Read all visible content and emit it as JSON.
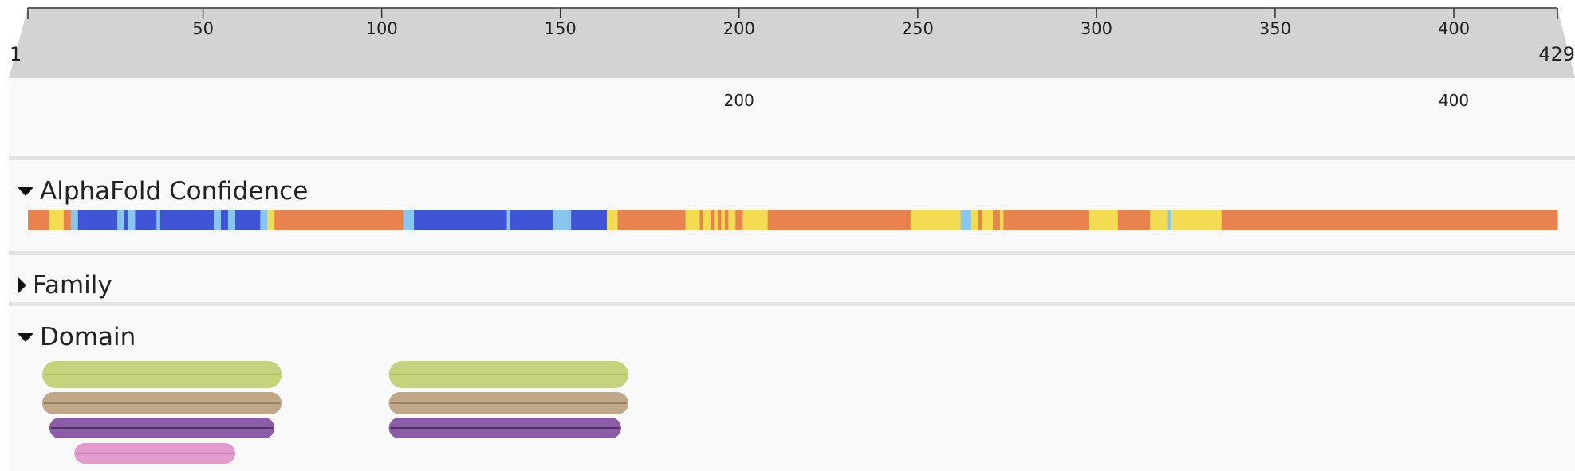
{
  "sequence": {
    "start": 1,
    "end": 429,
    "start_label": "1",
    "end_label": "429"
  },
  "ruler": {
    "ticks": [
      50,
      100,
      150,
      200,
      250,
      300,
      350,
      400
    ],
    "labels": [
      "50",
      "100",
      "150",
      "200",
      "250",
      "300",
      "350",
      "400"
    ]
  },
  "sub_axis": {
    "ticks": [
      200,
      400
    ],
    "labels": [
      "200",
      "400"
    ]
  },
  "tracks": {
    "confidence": {
      "label": "AlphaFold Confidence",
      "expanded": true
    },
    "family": {
      "label": "Family",
      "expanded": false
    },
    "domain": {
      "label": "Domain",
      "expanded": true
    }
  },
  "confidence_colors": {
    "very_high": "#3f54d6",
    "confident": "#87c6ee",
    "low": "#f4dc52",
    "very_low": "#e88350"
  },
  "confidence_segments": [
    {
      "start": 1,
      "end": 7,
      "level": "very_low"
    },
    {
      "start": 7,
      "end": 11,
      "level": "low"
    },
    {
      "start": 11,
      "end": 13,
      "level": "very_low"
    },
    {
      "start": 13,
      "end": 15,
      "level": "confident"
    },
    {
      "start": 15,
      "end": 26,
      "level": "very_high"
    },
    {
      "start": 26,
      "end": 28,
      "level": "confident"
    },
    {
      "start": 28,
      "end": 29,
      "level": "very_high"
    },
    {
      "start": 29,
      "end": 31,
      "level": "confident"
    },
    {
      "start": 31,
      "end": 37,
      "level": "very_high"
    },
    {
      "start": 37,
      "end": 38,
      "level": "confident"
    },
    {
      "start": 38,
      "end": 53,
      "level": "very_high"
    },
    {
      "start": 53,
      "end": 55,
      "level": "confident"
    },
    {
      "start": 55,
      "end": 57,
      "level": "very_high"
    },
    {
      "start": 57,
      "end": 59,
      "level": "confident"
    },
    {
      "start": 59,
      "end": 66,
      "level": "very_high"
    },
    {
      "start": 66,
      "end": 68,
      "level": "confident"
    },
    {
      "start": 68,
      "end": 70,
      "level": "low"
    },
    {
      "start": 70,
      "end": 106,
      "level": "very_low"
    },
    {
      "start": 106,
      "end": 109,
      "level": "confident"
    },
    {
      "start": 109,
      "end": 135,
      "level": "very_high"
    },
    {
      "start": 135,
      "end": 136,
      "level": "confident"
    },
    {
      "start": 136,
      "end": 148,
      "level": "very_high"
    },
    {
      "start": 148,
      "end": 153,
      "level": "confident"
    },
    {
      "start": 153,
      "end": 163,
      "level": "very_high"
    },
    {
      "start": 163,
      "end": 166,
      "level": "low"
    },
    {
      "start": 166,
      "end": 185,
      "level": "very_low"
    },
    {
      "start": 185,
      "end": 189,
      "level": "low"
    },
    {
      "start": 189,
      "end": 190,
      "level": "very_low"
    },
    {
      "start": 190,
      "end": 192,
      "level": "low"
    },
    {
      "start": 192,
      "end": 193,
      "level": "very_low"
    },
    {
      "start": 193,
      "end": 194,
      "level": "low"
    },
    {
      "start": 194,
      "end": 195,
      "level": "very_low"
    },
    {
      "start": 195,
      "end": 196,
      "level": "low"
    },
    {
      "start": 196,
      "end": 197,
      "level": "very_low"
    },
    {
      "start": 197,
      "end": 199,
      "level": "low"
    },
    {
      "start": 199,
      "end": 201,
      "level": "very_low"
    },
    {
      "start": 201,
      "end": 208,
      "level": "low"
    },
    {
      "start": 208,
      "end": 248,
      "level": "very_low"
    },
    {
      "start": 248,
      "end": 262,
      "level": "low"
    },
    {
      "start": 262,
      "end": 265,
      "level": "confident"
    },
    {
      "start": 265,
      "end": 267,
      "level": "low"
    },
    {
      "start": 267,
      "end": 268,
      "level": "very_low"
    },
    {
      "start": 268,
      "end": 271,
      "level": "low"
    },
    {
      "start": 271,
      "end": 273,
      "level": "very_low"
    },
    {
      "start": 273,
      "end": 274,
      "level": "low"
    },
    {
      "start": 274,
      "end": 298,
      "level": "very_low"
    },
    {
      "start": 298,
      "end": 306,
      "level": "low"
    },
    {
      "start": 306,
      "end": 315,
      "level": "very_low"
    },
    {
      "start": 315,
      "end": 320,
      "level": "low"
    },
    {
      "start": 320,
      "end": 321,
      "level": "confident"
    },
    {
      "start": 321,
      "end": 335,
      "level": "low"
    },
    {
      "start": 335,
      "end": 342,
      "level": "very_low"
    },
    {
      "start": 342,
      "end": 429,
      "level": "very_low"
    }
  ],
  "domains": [
    {
      "start": 5,
      "end": 72,
      "row": 0,
      "color": "#c5d37c",
      "line": "#9aaa4a"
    },
    {
      "start": 102,
      "end": 169,
      "row": 0,
      "color": "#c5d37c",
      "line": "#9aaa4a"
    },
    {
      "start": 5,
      "end": 72,
      "row": 1,
      "color": "#bfa887",
      "line": "#7d6a52"
    },
    {
      "start": 102,
      "end": 169,
      "row": 1,
      "color": "#bfa887",
      "line": "#7d6a52"
    },
    {
      "start": 7,
      "end": 70,
      "row": 2,
      "color": "#8b5ca8",
      "line": "#2b1a3a"
    },
    {
      "start": 102,
      "end": 167,
      "row": 2,
      "color": "#8b5ca8",
      "line": "#2b1a3a"
    },
    {
      "start": 14,
      "end": 59,
      "row": 3,
      "color": "#e29bcc",
      "line": "#b76aa3"
    }
  ]
}
